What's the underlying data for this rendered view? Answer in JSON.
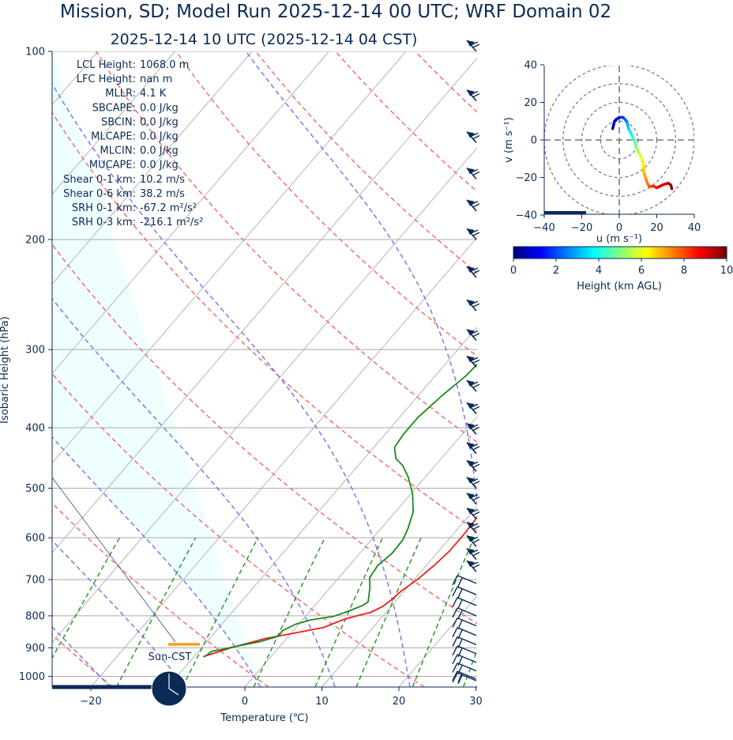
{
  "title": "Mission, SD; Model Run 2025-12-14 00 UTC; WRF Domain 02",
  "subtitle": "2025-12-14 10 UTC  (2025-12-14 04 CST)",
  "chart_data": [
    {
      "type": "skew-t",
      "xlabel": "Temperature (℃)",
      "ylabel": "Isobaric Height (hPa)",
      "xlim": [
        -25,
        30
      ],
      "ylim": [
        1050,
        100
      ],
      "x_ticks": [
        "−20",
        "−10",
        "0",
        "10",
        "20",
        "30"
      ],
      "x_tick_values": [
        -20,
        -10,
        0,
        10,
        20,
        30
      ],
      "y_ticks": [
        "100",
        "200",
        "300",
        "400",
        "500",
        "600",
        "700",
        "800",
        "900",
        "1000"
      ],
      "y_tick_values": [
        100,
        200,
        300,
        400,
        500,
        600,
        700,
        800,
        900,
        1000
      ],
      "grid": true,
      "series": [
        {
          "color": "#e8211b",
          "points": [
            [
              -8.8,
              930
            ],
            [
              -6.2,
              900
            ],
            [
              -2.8,
              870
            ],
            [
              0.9,
              850
            ],
            [
              3.6,
              835
            ],
            [
              5.2,
              812
            ],
            [
              6.6,
              800
            ],
            [
              8.0,
              790
            ],
            [
              8.9,
              773
            ],
            [
              9.3,
              755
            ],
            [
              9.6,
              730
            ],
            [
              10.4,
              700
            ],
            [
              11.0,
              665
            ],
            [
              11.4,
              630
            ],
            [
              11.4,
              590
            ],
            [
              11.2,
              555
            ],
            [
              10.8,
              525
            ],
            [
              10.4,
              500
            ],
            [
              9.4,
              470
            ],
            [
              8.0,
              440
            ],
            [
              6.2,
              410
            ],
            [
              4.5,
              385
            ],
            [
              1.8,
              350
            ],
            [
              -0.9,
              320
            ],
            [
              -3.4,
              290
            ],
            [
              -5.3,
              265
            ],
            [
              -6.6,
              245
            ],
            [
              -7.6,
              230
            ],
            [
              -8.1,
              215
            ],
            [
              -8.2,
              195
            ],
            [
              -6.3,
              175
            ],
            [
              -3.4,
              158
            ],
            [
              -0.5,
              142
            ],
            [
              2.2,
              127
            ],
            [
              4.4,
              116
            ],
            [
              6.6,
              107
            ],
            [
              8.2,
              100
            ]
          ]
        },
        {
          "color": "#1a8a1a",
          "points": [
            [
              -8.6,
              930
            ],
            [
              -8.3,
              912
            ],
            [
              -7.0,
              904
            ],
            [
              -5.6,
              895
            ],
            [
              -3.1,
              880
            ],
            [
              -1.3,
              862
            ],
            [
              -1.4,
              845
            ],
            [
              -0.4,
              825
            ],
            [
              1.1,
              812
            ],
            [
              3.6,
              802
            ],
            [
              4.7,
              790
            ],
            [
              6.2,
              770
            ],
            [
              6.5,
              760
            ],
            [
              6.0,
              745
            ],
            [
              5.1,
              720
            ],
            [
              4.0,
              695
            ],
            [
              3.7,
              665
            ],
            [
              4.2,
              635
            ],
            [
              4.1,
              605
            ],
            [
              3.5,
              580
            ],
            [
              2.3,
              545
            ],
            [
              0.2,
              510
            ],
            [
              -2.2,
              480
            ],
            [
              -4.2,
              460
            ],
            [
              -5.9,
              448
            ],
            [
              -7.3,
              430
            ],
            [
              -7.6,
              410
            ],
            [
              -7.6,
              385
            ],
            [
              -6.9,
              355
            ],
            [
              -6.0,
              330
            ],
            [
              -5.7,
              305
            ],
            [
              -5.9,
              285
            ],
            [
              -6.3,
              262
            ],
            [
              -7.1,
              242
            ],
            [
              -7.8,
              225
            ],
            [
              -8.6,
              200
            ],
            [
              -9.8,
              178
            ],
            [
              -10.9,
              160
            ],
            [
              -11.7,
              148
            ],
            [
              -12.0,
              138
            ],
            [
              -12.7,
              125
            ],
            [
              -15.6,
              115
            ],
            [
              -18.1,
              107
            ],
            [
              -20.5,
              100
            ]
          ]
        }
      ],
      "annotations": [
        {
          "label": "LCL Height:",
          "value": "1068.0 m"
        },
        {
          "label": "LFC Height:",
          "value": "nan m"
        },
        {
          "label": "MLLR:",
          "value": "4.1 K"
        },
        {
          "label": "SBCAPE:",
          "value": "0.0 J/kg"
        },
        {
          "label": "SBCIN:",
          "value": "0.0 J/kg"
        },
        {
          "label": "MLCAPE:",
          "value": "0.0 J/kg"
        },
        {
          "label": "MLCIN:",
          "value": "0.0 J/kg"
        },
        {
          "label": "MUCAPE:",
          "value": "0.0 J/kg"
        },
        {
          "label": "Shear 0-1 km:",
          "value": "10.2 m/s"
        },
        {
          "label": "Shear 0-6 km:",
          "value": "38.2 m/s"
        },
        {
          "label": "SRH 0-1 km:",
          "value": "-67.2 m²/s²"
        },
        {
          "label": "SRH 0-3 km:",
          "value": "-216.1 m²/s²"
        }
      ],
      "sun_label": "Sun-CST",
      "wind_barbs_hpa": [
        100,
        120,
        140,
        160,
        180,
        200,
        230,
        260,
        290,
        320,
        350,
        380,
        410,
        440,
        470,
        500,
        530,
        560,
        590,
        620,
        650,
        680,
        710,
        740,
        770,
        800,
        830,
        860,
        890,
        920,
        950,
        980,
        1010,
        1040
      ]
    },
    {
      "type": "hodograph",
      "xlabel": "u (m s⁻¹)",
      "ylabel": "v (m s⁻¹)",
      "xlim": [
        -40,
        40
      ],
      "ylim": [
        -40,
        40
      ],
      "x_ticks": [
        "−40",
        "−20",
        "0",
        "20",
        "40"
      ],
      "y_ticks": [
        "−40",
        "−20",
        "0",
        "20",
        "40"
      ],
      "colorbar": {
        "label": "Height (km AGL)",
        "ticks": [
          "0",
          "2",
          "4",
          "6",
          "8",
          "10"
        ],
        "range": [
          0,
          10
        ],
        "colormap": [
          "#00007f",
          "#0000ff",
          "#007fff",
          "#00ffff",
          "#7fff7f",
          "#ffff00",
          "#ff7f00",
          "#ff0000",
          "#7f0000"
        ]
      },
      "points": [
        [
          28,
          -26
        ],
        [
          27.5,
          -24
        ],
        [
          26,
          -23
        ],
        [
          23,
          -24
        ],
        [
          20,
          -25.5
        ],
        [
          18,
          -24.5
        ],
        [
          16,
          -25
        ],
        [
          15,
          -23
        ],
        [
          14,
          -20
        ],
        [
          13,
          -17
        ],
        [
          13,
          -14
        ],
        [
          12,
          -10
        ],
        [
          11,
          -8
        ],
        [
          10,
          -6
        ],
        [
          9,
          -4
        ],
        [
          8.5,
          -2
        ],
        [
          8,
          0
        ],
        [
          7,
          2
        ],
        [
          6,
          4
        ],
        [
          5,
          6
        ],
        [
          4.5,
          8
        ],
        [
          4,
          10
        ],
        [
          3,
          11
        ],
        [
          2,
          12
        ],
        [
          0,
          12
        ],
        [
          -1.5,
          11
        ],
        [
          -2.5,
          10
        ],
        [
          -3,
          8
        ],
        [
          -3.5,
          6
        ]
      ]
    }
  ]
}
